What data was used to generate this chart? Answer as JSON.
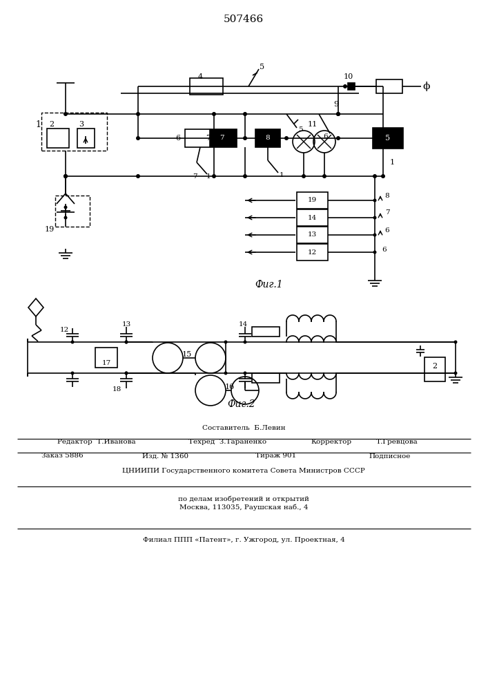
{
  "title": "507466",
  "fig1_label": "Фиг.1",
  "fig2_label": "Фиг.2",
  "footer_composer": "Составитель  Б.Левин",
  "footer_editor": "Редактор  Т.Иванова",
  "footer_tech": "Техред  З.Тараненко",
  "footer_corrector": "Корректор",
  "footer_grevtsova": "Т.Гревцова",
  "footer_order": "Заказ 5886",
  "footer_issue": "Изд. № 1360",
  "footer_tirazh": "Тираж 901",
  "footer_podp": "Подписное",
  "footer_cniip1": "ЦНИИПИ Государственного комитета Совета Министров СССР",
  "footer_cniip2": "по делам изобретений и открытий",
  "footer_cniip3": "Москва, 113035, Раушская наб., 4",
  "footer_filial": "Филиал ППП «Патент», г. Ужгород, ул. Проектная, 4",
  "bg_color": "#ffffff"
}
